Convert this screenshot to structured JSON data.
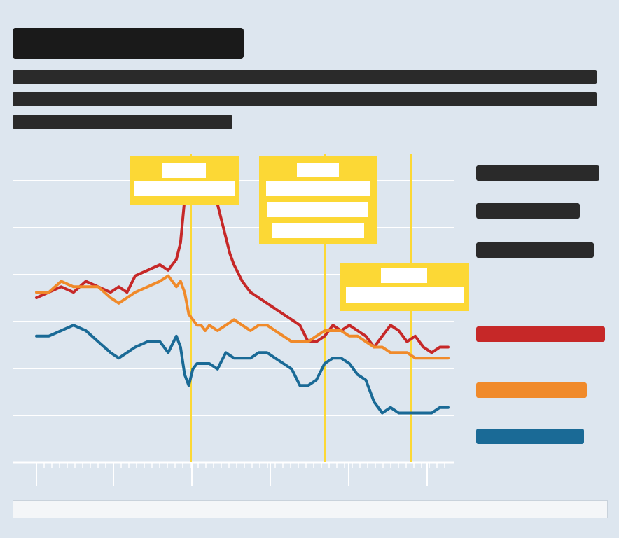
{
  "title": "",
  "subtitle_lines": [
    "",
    "",
    ""
  ],
  "legend_items": [
    "",
    "",
    "",
    "",
    "",
    ""
  ],
  "footer": "",
  "colors": {
    "red": "#c62828",
    "orange": "#f08a2a",
    "blue": "#1a6a96",
    "annotation": "#fcd835",
    "background": "#dde6ef",
    "grid": "#ffffff"
  },
  "chart_data": {
    "type": "line",
    "title": "",
    "xlabel": "",
    "ylabel": "",
    "grid": true,
    "legend": "right",
    "xlim": [
      0,
      100
    ],
    "ylim": [
      0,
      6
    ],
    "series": [
      {
        "color": "#c62828",
        "x": [
          0,
          3,
          6,
          9,
          12,
          15,
          18,
          20,
          22,
          24,
          27,
          30,
          32,
          34,
          35,
          36,
          37,
          37.5,
          38,
          39,
          40,
          41,
          42,
          43,
          44,
          45,
          46,
          47,
          48,
          50,
          52,
          54,
          56,
          58,
          60,
          62,
          64,
          66,
          68,
          70,
          72,
          74,
          76,
          78,
          80,
          82,
          84,
          86,
          88,
          90,
          92,
          94,
          96,
          98,
          100
        ],
        "y": [
          3.0,
          3.1,
          3.2,
          3.1,
          3.3,
          3.2,
          3.1,
          3.2,
          3.1,
          3.4,
          3.5,
          3.6,
          3.5,
          3.7,
          4.0,
          4.8,
          5.4,
          5.2,
          5.3,
          4.9,
          5.0,
          4.8,
          4.8,
          5.0,
          4.7,
          4.4,
          4.1,
          3.8,
          3.6,
          3.3,
          3.1,
          3.0,
          2.9,
          2.8,
          2.7,
          2.6,
          2.5,
          2.2,
          2.2,
          2.3,
          2.5,
          2.4,
          2.5,
          2.4,
          2.3,
          2.1,
          2.3,
          2.5,
          2.4,
          2.2,
          2.3,
          2.1,
          2.0,
          2.1,
          2.1
        ]
      },
      {
        "color": "#f08a2a",
        "x": [
          0,
          3,
          6,
          9,
          12,
          15,
          18,
          20,
          22,
          24,
          27,
          30,
          32,
          34,
          35,
          36,
          37,
          38,
          39,
          40,
          41,
          42,
          44,
          46,
          48,
          50,
          52,
          54,
          56,
          58,
          60,
          62,
          64,
          66,
          68,
          70,
          72,
          74,
          76,
          78,
          80,
          82,
          84,
          86,
          88,
          90,
          92,
          94,
          96,
          98,
          100
        ],
        "y": [
          3.1,
          3.1,
          3.3,
          3.2,
          3.2,
          3.2,
          3.0,
          2.9,
          3.0,
          3.1,
          3.2,
          3.3,
          3.4,
          3.2,
          3.3,
          3.1,
          2.7,
          2.6,
          2.5,
          2.5,
          2.4,
          2.5,
          2.4,
          2.5,
          2.6,
          2.5,
          2.4,
          2.5,
          2.5,
          2.4,
          2.3,
          2.2,
          2.2,
          2.2,
          2.3,
          2.4,
          2.4,
          2.4,
          2.3,
          2.3,
          2.2,
          2.1,
          2.1,
          2.0,
          2.0,
          2.0,
          1.9,
          1.9,
          1.9,
          1.9,
          1.9
        ]
      },
      {
        "color": "#1a6a96",
        "x": [
          0,
          3,
          6,
          9,
          12,
          15,
          18,
          20,
          22,
          24,
          27,
          30,
          32,
          34,
          35,
          36,
          37,
          38,
          39,
          40,
          42,
          44,
          46,
          48,
          50,
          52,
          54,
          56,
          58,
          60,
          62,
          64,
          66,
          68,
          70,
          72,
          74,
          76,
          78,
          80,
          82,
          84,
          86,
          88,
          90,
          92,
          94,
          96,
          98,
          100
        ],
        "y": [
          2.3,
          2.3,
          2.4,
          2.5,
          2.4,
          2.2,
          2.0,
          1.9,
          2.0,
          2.1,
          2.2,
          2.2,
          2.0,
          2.3,
          2.1,
          1.6,
          1.4,
          1.7,
          1.8,
          1.8,
          1.8,
          1.7,
          2.0,
          1.9,
          1.9,
          1.9,
          2.0,
          2.0,
          1.9,
          1.8,
          1.7,
          1.4,
          1.4,
          1.5,
          1.8,
          1.9,
          1.9,
          1.8,
          1.6,
          1.5,
          1.1,
          0.9,
          1.0,
          0.9,
          0.9,
          0.9,
          0.9,
          0.9,
          1.0,
          1.0
        ]
      }
    ],
    "annotations": [
      {
        "x": 37.5,
        "label": ""
      },
      {
        "x": 70,
        "label": ""
      },
      {
        "x": 91,
        "label": ""
      }
    ]
  }
}
